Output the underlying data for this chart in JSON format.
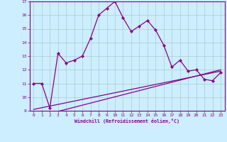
{
  "x_values": [
    0,
    1,
    2,
    3,
    4,
    5,
    6,
    7,
    8,
    9,
    10,
    11,
    12,
    13,
    14,
    15,
    16,
    17,
    18,
    19,
    20,
    21,
    22,
    23
  ],
  "line1_y": [
    11.0,
    11.0,
    9.2,
    13.2,
    12.5,
    12.7,
    13.0,
    14.3,
    16.0,
    16.5,
    17.0,
    15.8,
    14.8,
    15.2,
    15.6,
    14.9,
    13.8,
    12.2,
    12.7,
    11.9,
    12.0,
    11.3,
    11.2,
    11.8
  ],
  "line2_y": [
    9.0,
    null,
    9.0,
    null,
    null,
    null,
    null,
    null,
    null,
    null,
    null,
    null,
    null,
    null,
    null,
    null,
    null,
    null,
    null,
    null,
    null,
    null,
    null,
    null
  ],
  "line3": [
    [
      0,
      9.1
    ],
    [
      23,
      11.9
    ]
  ],
  "line4": [
    [
      2,
      8.8
    ],
    [
      23,
      12.0
    ]
  ],
  "ylim": [
    9,
    17
  ],
  "xlim": [
    -0.5,
    23.5
  ],
  "yticks": [
    9,
    10,
    11,
    12,
    13,
    14,
    15,
    16,
    17
  ],
  "xticks": [
    0,
    1,
    2,
    3,
    4,
    5,
    6,
    7,
    8,
    9,
    10,
    11,
    12,
    13,
    14,
    15,
    16,
    17,
    18,
    19,
    20,
    21,
    22,
    23
  ],
  "xlabel": "Windchill (Refroidissement éolien,°C)",
  "line_color": "#880088",
  "bg_color": "#cceeff",
  "grid_color": "#aacccc"
}
